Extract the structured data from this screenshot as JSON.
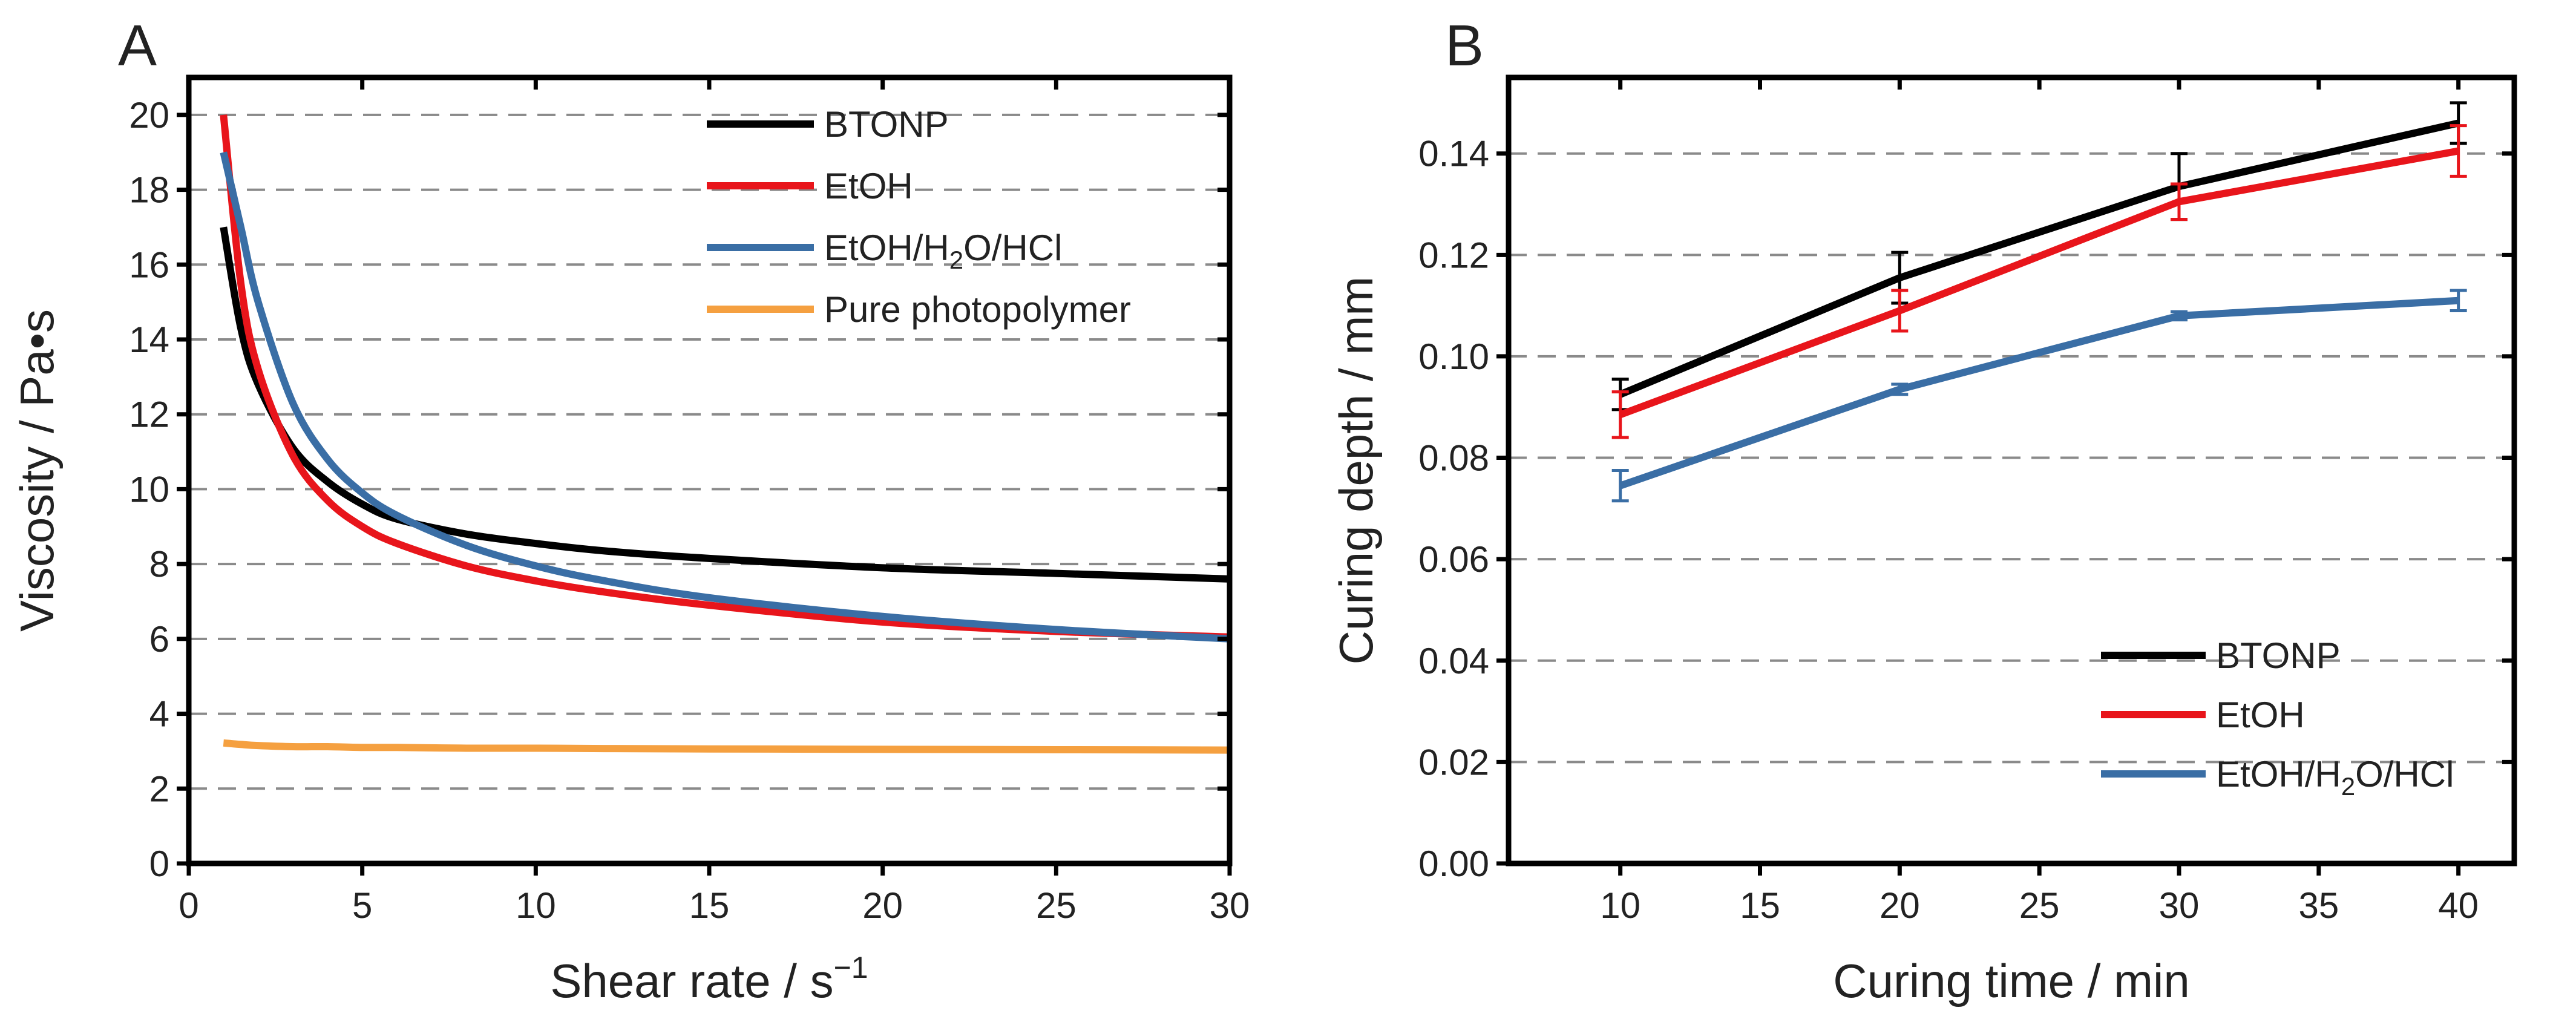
{
  "chart_data": [
    {
      "panel": "A",
      "type": "line",
      "xlabel": "Shear rate / s",
      "xlabel_sup": "−1",
      "ylabel": "Viscosity / Pa•s",
      "xlim": [
        0,
        30
      ],
      "ylim": [
        0,
        21
      ],
      "xticks": [
        0,
        5,
        10,
        15,
        20,
        25,
        30
      ],
      "yticks": [
        0,
        2,
        4,
        6,
        8,
        10,
        12,
        14,
        16,
        18,
        20
      ],
      "grid": "horizontal dashed",
      "legend_position": "top-right",
      "x": [
        1,
        1.5,
        2,
        3,
        4,
        5,
        6,
        8,
        10,
        12,
        15,
        20,
        25,
        30
      ],
      "series": [
        {
          "name": "BTONP",
          "color": "#000000",
          "values": [
            17.0,
            14.3,
            12.8,
            11.1,
            10.2,
            9.6,
            9.2,
            8.8,
            8.55,
            8.35,
            8.15,
            7.9,
            7.75,
            7.6
          ]
        },
        {
          "name": "EtOH",
          "color": "#e8151b",
          "values": [
            20.0,
            15.5,
            13.2,
            10.9,
            9.7,
            9.0,
            8.55,
            7.95,
            7.55,
            7.25,
            6.9,
            6.45,
            6.2,
            6.05
          ]
        },
        {
          "name": "EtOH/H2O/HCl",
          "name_parts": [
            "EtOH/H",
            "2",
            "O/HCl"
          ],
          "color": "#3a6ea5",
          "values": [
            19.0,
            17.0,
            15.0,
            12.3,
            10.8,
            9.9,
            9.3,
            8.5,
            7.95,
            7.55,
            7.1,
            6.6,
            6.25,
            6.0
          ]
        },
        {
          "name": "Pure photopolymer",
          "color": "#f5a040",
          "values": [
            3.22,
            3.18,
            3.15,
            3.12,
            3.12,
            3.1,
            3.1,
            3.08,
            3.08,
            3.07,
            3.06,
            3.05,
            3.04,
            3.03
          ]
        }
      ]
    },
    {
      "panel": "B",
      "type": "line",
      "xlabel": "Curing time / min",
      "ylabel": "Curing depth / mm",
      "xlim": [
        6,
        42
      ],
      "ylim": [
        0,
        0.155
      ],
      "xticks": [
        10,
        15,
        20,
        25,
        30,
        35,
        40
      ],
      "yticks": [
        "0.00",
        "0.02",
        "0.04",
        "0.06",
        "0.08",
        "0.10",
        "0.12",
        "0.14"
      ],
      "grid": "horizontal dashed",
      "legend_position": "bottom-right",
      "x": [
        10,
        20,
        30,
        40
      ],
      "series": [
        {
          "name": "BTONP",
          "color": "#000000",
          "values": [
            0.0925,
            0.1155,
            0.1335,
            0.146
          ],
          "errors": [
            0.003,
            0.005,
            0.0065,
            0.004
          ]
        },
        {
          "name": "EtOH",
          "color": "#e8151b",
          "values": [
            0.0885,
            0.109,
            0.1305,
            0.1405
          ],
          "errors": [
            0.0045,
            0.004,
            0.0035,
            0.005
          ]
        },
        {
          "name": "EtOH/H2O/HCl",
          "name_parts": [
            "EtOH/H",
            "2",
            "O/HCl"
          ],
          "color": "#3a6ea5",
          "values": [
            0.0745,
            0.0935,
            0.108,
            0.111
          ],
          "errors": [
            0.003,
            0.001,
            0.0008,
            0.002
          ]
        }
      ]
    }
  ]
}
